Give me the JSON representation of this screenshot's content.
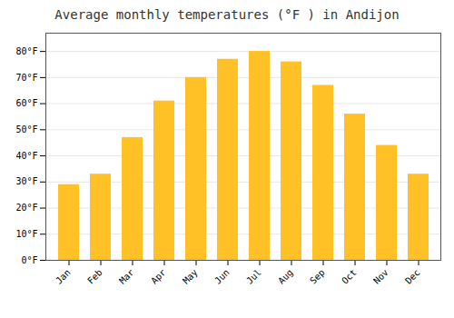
{
  "chart_data": {
    "type": "bar",
    "title": "Average monthly temperatures (°F ) in Andijon",
    "categories": [
      "Jan",
      "Feb",
      "Mar",
      "Apr",
      "May",
      "Jun",
      "Jul",
      "Aug",
      "Sep",
      "Oct",
      "Nov",
      "Dec"
    ],
    "values": [
      29,
      33,
      47,
      61,
      70,
      77,
      80,
      76,
      67,
      56,
      44,
      33
    ],
    "color": "#FFC125",
    "ylim": [
      0,
      87
    ],
    "yticks": [
      {
        "value": 0,
        "label": "0°F"
      },
      {
        "value": 10,
        "label": "10°F"
      },
      {
        "value": 20,
        "label": "20°F"
      },
      {
        "value": 30,
        "label": "30°F"
      },
      {
        "value": 40,
        "label": "40°F"
      },
      {
        "value": 50,
        "label": "50°F"
      },
      {
        "value": 60,
        "label": "60°F"
      },
      {
        "value": 70,
        "label": "70°F"
      },
      {
        "value": 80,
        "label": "80°F"
      }
    ],
    "grid": true
  }
}
